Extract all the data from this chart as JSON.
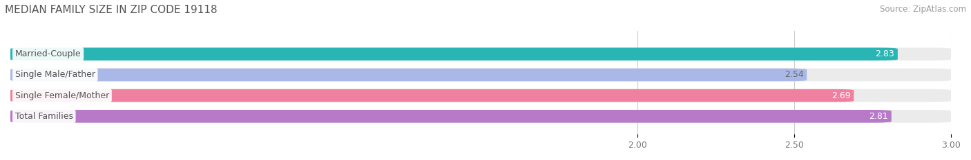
{
  "title": "MEDIAN FAMILY SIZE IN ZIP CODE 19118",
  "source": "Source: ZipAtlas.com",
  "categories": [
    "Married-Couple",
    "Single Male/Father",
    "Single Female/Mother",
    "Total Families"
  ],
  "values": [
    2.83,
    2.54,
    2.69,
    2.81
  ],
  "bar_colors": [
    "#2ab5b5",
    "#aab8e8",
    "#f080a0",
    "#b87ac8"
  ],
  "bar_bg_color": "#ebebeb",
  "label_bg_color": "#ffffff",
  "label_text_color": "#555555",
  "value_colors": [
    "#ffffff",
    "#666666",
    "#ffffff",
    "#ffffff"
  ],
  "xlim": [
    0.0,
    3.0
  ],
  "xticks": [
    2.0,
    2.5,
    3.0
  ],
  "xtick_labels": [
    "2.00",
    "2.50",
    "3.00"
  ],
  "bar_height": 0.62,
  "figsize": [
    14.06,
    2.33
  ],
  "dpi": 100,
  "bg_color": "#ffffff",
  "title_fontsize": 11,
  "label_fontsize": 9,
  "value_fontsize": 9,
  "tick_fontsize": 9,
  "source_fontsize": 8.5,
  "grid_color": "#cccccc"
}
